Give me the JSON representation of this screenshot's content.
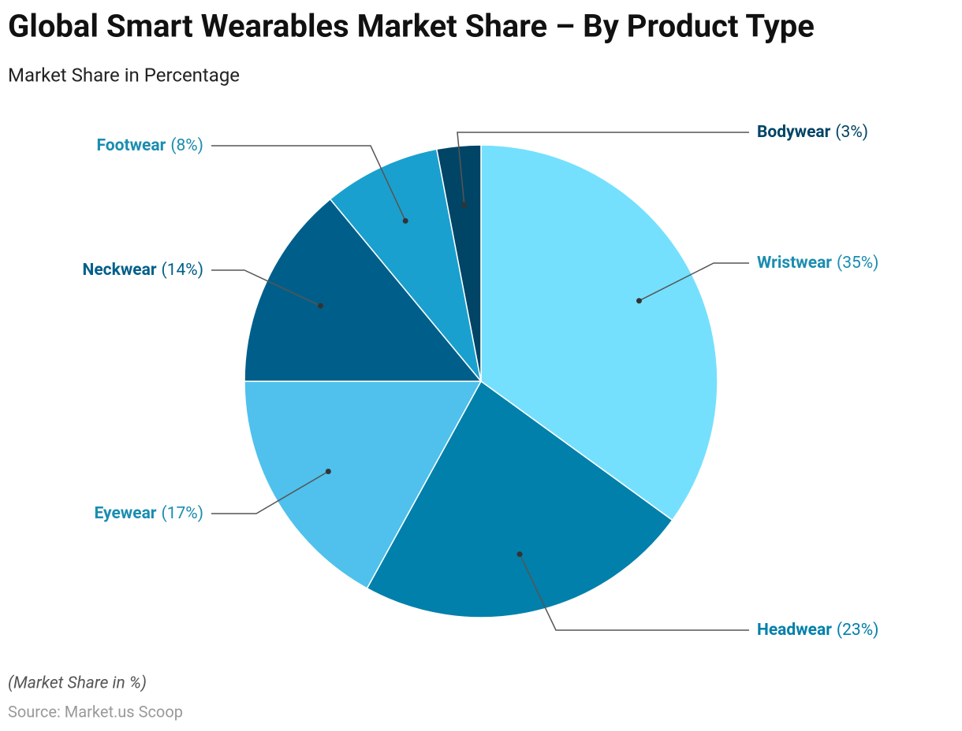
{
  "chart_data": {
    "type": "pie",
    "title": "Global Smart Wearables Market Share – By Product Type",
    "subtitle": "Market Share in Percentage",
    "note": "(Market Share in %)",
    "source": "Source: Market.us Scoop",
    "categories": [
      "Wristwear",
      "Headwear",
      "Eyewear",
      "Neckwear",
      "Footwear",
      "Bodywear"
    ],
    "values": [
      35,
      23,
      17,
      14,
      8,
      3
    ],
    "value_labels": [
      "(35%)",
      "(23%)",
      "(17%)",
      "(14%)",
      "(8%)",
      "(3%)"
    ],
    "colors": [
      "#75e0fd",
      "#0080ab",
      "#4fc1ec",
      "#005f8a",
      "#1aa0ce",
      "#004466"
    ]
  }
}
